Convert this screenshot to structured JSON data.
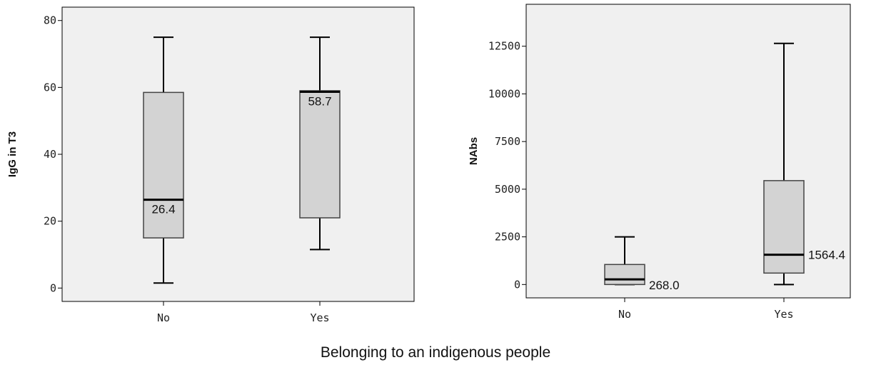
{
  "figure": {
    "shared_xlabel": "Belonging to an indigenous people"
  },
  "chart_data": [
    {
      "type": "box",
      "ylabel": "IgG in T3",
      "xlabel": "",
      "categories": [
        "No",
        "Yes"
      ],
      "ylim": [
        -4,
        84
      ],
      "yticks": [
        0,
        20,
        40,
        60,
        80
      ],
      "grid": false,
      "boxes": [
        {
          "category": "No",
          "min": 1.5,
          "q1": 15.0,
          "median": 26.4,
          "q3": 58.5,
          "max": 75.0,
          "median_label": "26.4"
        },
        {
          "category": "Yes",
          "min": 11.5,
          "q1": 21.0,
          "median": 58.7,
          "q3": 59.0,
          "max": 75.0,
          "median_label": "58.7"
        }
      ]
    },
    {
      "type": "box",
      "ylabel": "NAbs",
      "xlabel": "",
      "categories": [
        "No",
        "Yes"
      ],
      "ylim": [
        -700,
        14700
      ],
      "yticks": [
        0,
        2500,
        5000,
        7500,
        10000,
        12500
      ],
      "grid": false,
      "boxes": [
        {
          "category": "No",
          "min": 0,
          "q1": 0,
          "median": 268.0,
          "q3": 1050,
          "max": 2500,
          "median_label": "268.0"
        },
        {
          "category": "Yes",
          "min": 0,
          "q1": 600,
          "median": 1564.4,
          "q3": 5450,
          "max": 12650,
          "median_label": "1564.4"
        }
      ]
    }
  ]
}
